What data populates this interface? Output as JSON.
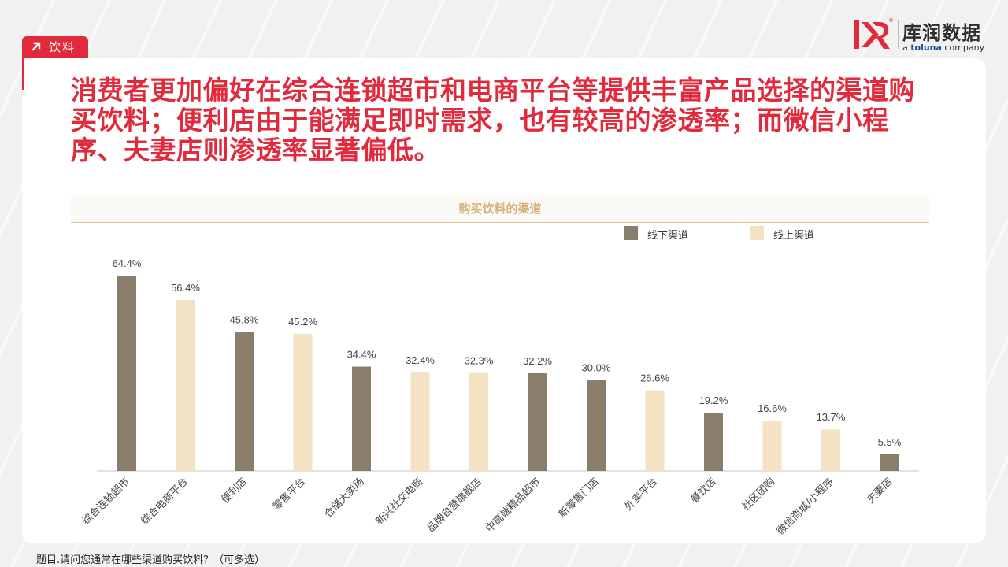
{
  "tag": {
    "label": "饮料",
    "icon": "arrow-up-right-icon"
  },
  "logo": {
    "name_cn": "库润数据",
    "tagline_a": "a ",
    "tagline_b": "toluna",
    "tagline_c": " company",
    "mark_icon": "kr-logo-icon",
    "badge": "®"
  },
  "headline": "消费者更加偏好在综合连锁超市和电商平台等提供丰富产品选择的渠道购买饮料；便利店由于能满足即时需求，也有较高的渗透率；而微信小程序、夫妻店则渗透率显著偏低。",
  "footnote": "题目.请问您通常在哪些渠道购买饮料？（可多选）",
  "colors": {
    "offline": "#8b7d6b",
    "online": "#f3e2c3",
    "accent": "#e12a3c",
    "title_gold": "#d6b07a"
  },
  "chart_data": {
    "type": "bar",
    "title": "购买饮料的渠道",
    "legend": [
      {
        "key": "offline",
        "label": "线下渠道"
      },
      {
        "key": "online",
        "label": "线上渠道"
      }
    ],
    "legend_position": "top-right",
    "value_unit": "%",
    "ylim": [
      0,
      70
    ],
    "grid": false,
    "bars": [
      {
        "label": "综合连锁超市",
        "value": 64.4,
        "display": "64.4%",
        "group": "offline"
      },
      {
        "label": "综合电商平台",
        "value": 56.4,
        "display": "56.4%",
        "group": "online"
      },
      {
        "label": "便利店",
        "value": 45.8,
        "display": "45.8%",
        "group": "offline"
      },
      {
        "label": "零售平台",
        "value": 45.2,
        "display": "45.2%",
        "group": "online"
      },
      {
        "label": "仓储大卖场",
        "value": 34.4,
        "display": "34.4%",
        "group": "offline"
      },
      {
        "label": "新兴社交电商",
        "value": 32.4,
        "display": "32.4%",
        "group": "online"
      },
      {
        "label": "品牌自营旗舰店",
        "value": 32.3,
        "display": "32.3%",
        "group": "online"
      },
      {
        "label": "中高端精品超市",
        "value": 32.2,
        "display": "32.2%",
        "group": "offline"
      },
      {
        "label": "新零售门店",
        "value": 30.0,
        "display": "30.0%",
        "group": "offline"
      },
      {
        "label": "外卖平台",
        "value": 26.6,
        "display": "26.6%",
        "group": "online"
      },
      {
        "label": "餐饮店",
        "value": 19.2,
        "display": "19.2%",
        "group": "offline"
      },
      {
        "label": "社区团购",
        "value": 16.6,
        "display": "16.6%",
        "group": "online"
      },
      {
        "label": "微信商城/小程序",
        "value": 13.7,
        "display": "13.7%",
        "group": "online"
      },
      {
        "label": "夫妻店",
        "value": 5.5,
        "display": "5.5%",
        "group": "offline"
      }
    ]
  }
}
